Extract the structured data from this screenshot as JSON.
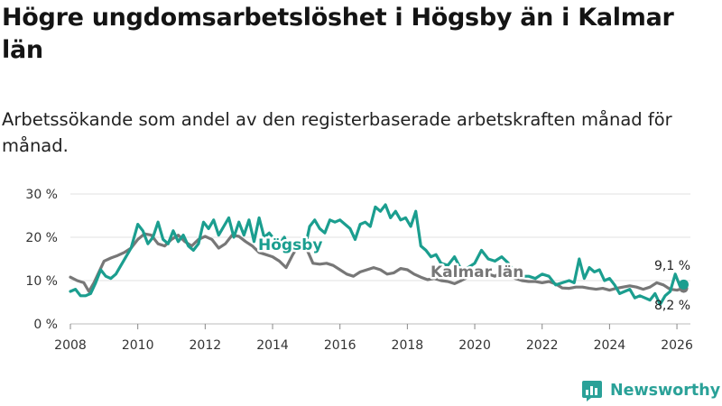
{
  "title": "Högre ungdomsarbetslöshet i Högsby än i Kalmar län",
  "subtitle": "Arbetssökande som andel av den registerbaserade arbetskraften månad för månad.",
  "brand": {
    "name": "Newsworthy",
    "accent": "#2aa198"
  },
  "chart_data": {
    "type": "line",
    "title": "Högre ungdomsarbetslöshet i Högsby än i Kalmar län",
    "xlabel": "",
    "ylabel": "",
    "ylim": [
      0,
      30
    ],
    "xlim": [
      2008,
      2026.4
    ],
    "y_ticks": [
      0,
      10,
      20,
      30
    ],
    "y_tick_labels": [
      "0 %",
      "10 %",
      "20 %",
      "30 %"
    ],
    "x_ticks": [
      2008,
      2010,
      2012,
      2014,
      2016,
      2018,
      2020,
      2022,
      2024,
      2026
    ],
    "x_tick_labels": [
      "2008",
      "2010",
      "2012",
      "2014",
      "2016",
      "2018",
      "2020",
      "2022",
      "2024",
      "2026"
    ],
    "grid": true,
    "series": [
      {
        "name": "Kalmar län",
        "label": "Kalmar län",
        "color": "#777777",
        "end_label": "8,2 %",
        "end_value": 8.2,
        "x": [
          2008.0,
          2008.2,
          2008.4,
          2008.55,
          2008.7,
          2008.85,
          2009.0,
          2009.2,
          2009.4,
          2009.6,
          2009.8,
          2010.0,
          2010.2,
          2010.4,
          2010.6,
          2010.8,
          2011.0,
          2011.2,
          2011.4,
          2011.6,
          2011.8,
          2012.0,
          2012.2,
          2012.4,
          2012.6,
          2012.8,
          2013.0,
          2013.2,
          2013.4,
          2013.6,
          2013.8,
          2014.0,
          2014.2,
          2014.4,
          2014.6,
          2014.8,
          2015.0,
          2015.2,
          2015.4,
          2015.6,
          2015.8,
          2016.0,
          2016.2,
          2016.4,
          2016.6,
          2016.8,
          2017.0,
          2017.2,
          2017.4,
          2017.6,
          2017.8,
          2018.0,
          2018.2,
          2018.4,
          2018.6,
          2018.8,
          2019.0,
          2019.2,
          2019.4,
          2019.6,
          2019.8,
          2020.0,
          2020.2,
          2020.4,
          2020.6,
          2020.8,
          2021.0,
          2021.2,
          2021.4,
          2021.6,
          2021.8,
          2022.0,
          2022.2,
          2022.4,
          2022.6,
          2022.8,
          2023.0,
          2023.2,
          2023.4,
          2023.6,
          2023.8,
          2024.0,
          2024.2,
          2024.4,
          2024.6,
          2024.8,
          2025.0,
          2025.2,
          2025.4,
          2025.6,
          2025.8,
          2026.0,
          2026.2
        ],
        "values": [
          10.8,
          10.0,
          9.5,
          7.5,
          9.5,
          12.0,
          14.5,
          15.2,
          15.8,
          16.5,
          17.5,
          19.5,
          20.8,
          20.5,
          18.5,
          18.0,
          19.5,
          20.5,
          19.0,
          18.0,
          19.5,
          20.2,
          19.5,
          17.5,
          18.5,
          20.5,
          20.2,
          19.0,
          18.0,
          16.5,
          16.0,
          15.5,
          14.5,
          13.0,
          16.0,
          18.5,
          17.5,
          14.0,
          13.8,
          14.0,
          13.5,
          12.5,
          11.5,
          11.0,
          12.0,
          12.5,
          13.0,
          12.5,
          11.5,
          11.8,
          12.8,
          12.5,
          11.5,
          10.8,
          10.2,
          10.5,
          10.0,
          9.8,
          9.3,
          10.0,
          10.8,
          11.5,
          12.0,
          11.5,
          11.0,
          12.0,
          11.5,
          10.5,
          10.0,
          9.8,
          9.8,
          9.5,
          9.8,
          9.2,
          8.3,
          8.2,
          8.5,
          8.5,
          8.2,
          8.0,
          8.2,
          7.8,
          8.2,
          8.5,
          8.8,
          8.5,
          8.0,
          8.5,
          9.5,
          9.0,
          8.0,
          7.8,
          8.2
        ]
      },
      {
        "name": "Högsby",
        "label": "Högsby",
        "color": "#1b9e8f",
        "end_label": "9,1 %",
        "end_value": 9.1,
        "x": [
          2008.0,
          2008.15,
          2008.3,
          2008.45,
          2008.6,
          2008.75,
          2008.9,
          2009.05,
          2009.2,
          2009.35,
          2009.5,
          2009.65,
          2009.8,
          2010.0,
          2010.15,
          2010.3,
          2010.45,
          2010.6,
          2010.75,
          2010.9,
          2011.05,
          2011.2,
          2011.35,
          2011.5,
          2011.65,
          2011.8,
          2011.95,
          2012.1,
          2012.25,
          2012.4,
          2012.55,
          2012.7,
          2012.85,
          2013.0,
          2013.15,
          2013.3,
          2013.45,
          2013.6,
          2013.75,
          2013.9,
          2014.05,
          2014.2,
          2014.35,
          2014.5,
          2014.65,
          2014.8,
          2014.95,
          2015.1,
          2015.25,
          2015.4,
          2015.55,
          2015.7,
          2015.85,
          2016.0,
          2016.15,
          2016.3,
          2016.45,
          2016.6,
          2016.75,
          2016.9,
          2017.05,
          2017.2,
          2017.35,
          2017.5,
          2017.65,
          2017.8,
          2017.95,
          2018.1,
          2018.25,
          2018.4,
          2018.55,
          2018.7,
          2018.85,
          2019.0,
          2019.2,
          2019.4,
          2019.6,
          2019.8,
          2020.0,
          2020.2,
          2020.4,
          2020.6,
          2020.8,
          2021.0,
          2021.2,
          2021.4,
          2021.6,
          2021.8,
          2022.0,
          2022.2,
          2022.4,
          2022.6,
          2022.8,
          2022.95,
          2023.1,
          2023.25,
          2023.4,
          2023.55,
          2023.7,
          2023.85,
          2024.0,
          2024.15,
          2024.3,
          2024.45,
          2024.6,
          2024.75,
          2024.9,
          2025.05,
          2025.2,
          2025.35,
          2025.5,
          2025.65,
          2025.8,
          2025.95,
          2026.1,
          2026.2
        ],
        "values": [
          7.5,
          8.0,
          6.5,
          6.5,
          7.0,
          9.5,
          12.5,
          11.0,
          10.5,
          11.5,
          13.5,
          15.5,
          17.5,
          23.0,
          21.5,
          18.5,
          20.0,
          23.5,
          19.5,
          18.5,
          21.5,
          19.0,
          20.5,
          18.0,
          17.0,
          18.5,
          23.5,
          22.0,
          24.0,
          20.5,
          22.5,
          24.5,
          20.0,
          23.5,
          20.5,
          24.0,
          19.0,
          24.5,
          20.0,
          21.0,
          19.5,
          18.5,
          20.0,
          16.5,
          19.0,
          17.5,
          17.0,
          22.5,
          24.0,
          22.0,
          21.0,
          24.0,
          23.5,
          24.0,
          23.0,
          22.0,
          19.5,
          23.0,
          23.5,
          22.5,
          27.0,
          26.0,
          27.5,
          24.5,
          26.0,
          24.0,
          24.5,
          22.5,
          26.0,
          18.0,
          17.0,
          15.5,
          16.0,
          14.0,
          13.5,
          15.5,
          12.5,
          13.0,
          14.0,
          17.0,
          15.0,
          14.5,
          15.5,
          14.0,
          12.0,
          11.0,
          11.0,
          10.5,
          11.5,
          11.0,
          9.0,
          9.5,
          10.0,
          9.5,
          15.0,
          10.5,
          13.0,
          12.0,
          12.5,
          10.0,
          10.5,
          9.0,
          7.0,
          7.5,
          8.0,
          6.0,
          6.5,
          6.0,
          5.5,
          7.0,
          4.5,
          6.5,
          7.5,
          11.5,
          8.5,
          9.1
        ]
      }
    ]
  }
}
